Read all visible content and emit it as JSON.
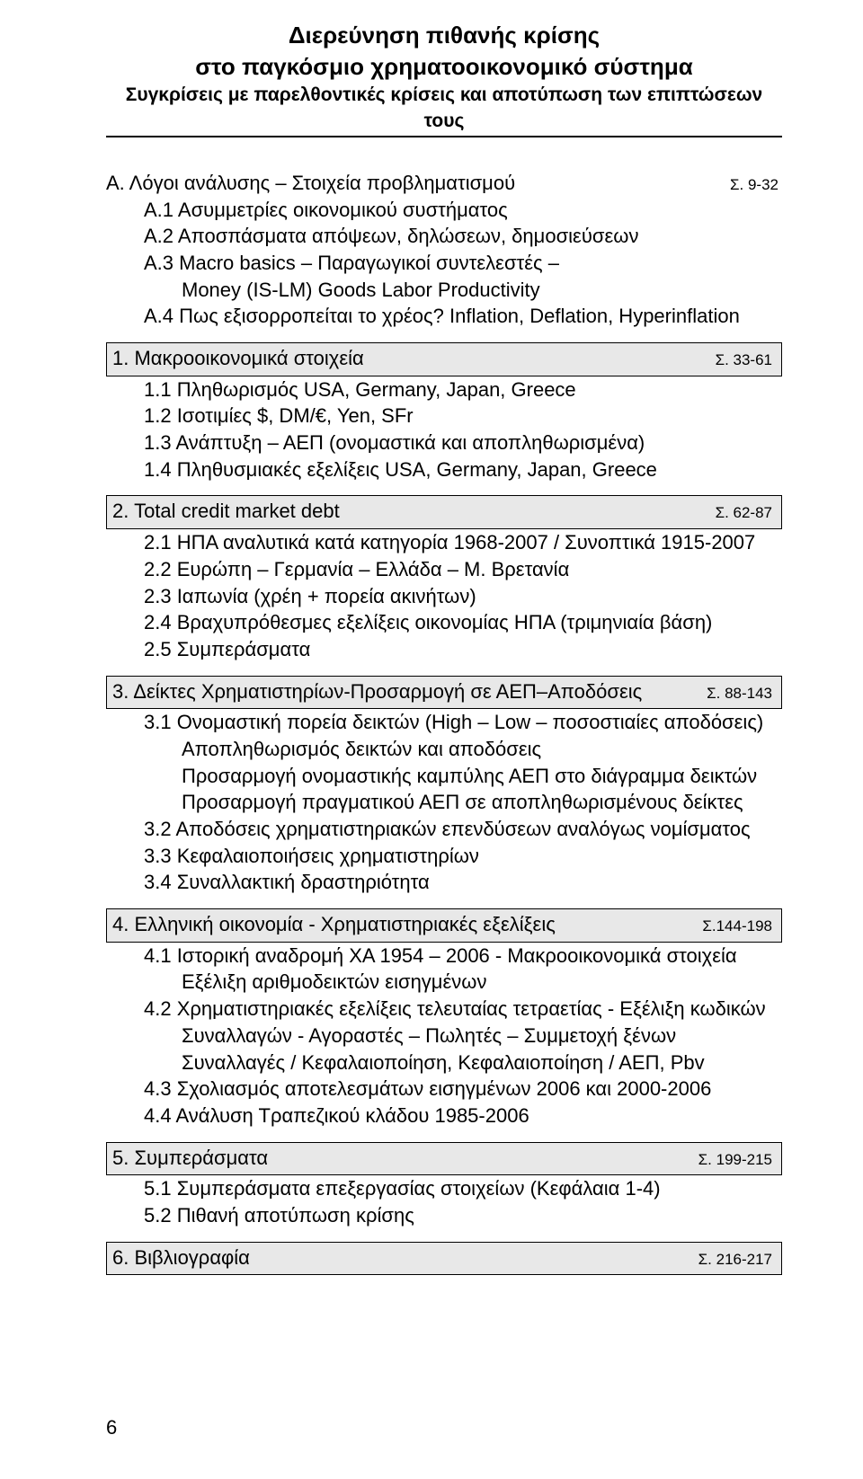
{
  "title": {
    "line1": "Διερεύνηση πιθανής κρίσης",
    "line2": "στο παγκόσμιο χρηματοοικονομικό σύστημα",
    "line3": "Συγκρίσεις με παρελθοντικές κρίσεις και αποτύπωση των επιπτώσεων τους"
  },
  "sectionA": {
    "head": "Α. Λόγοι ανάλυσης – Στοιχεία προβληματισμού",
    "page": "Σ. 9-32",
    "items": [
      "Α.1 Ασυμμετρίες οικονομικού συστήματος",
      "Α.2 Αποσπάσματα απόψεων, δηλώσεων, δημοσιεύσεων",
      "Α.3 Macro basics – Παραγωγικοί συντελεστές –",
      "Money (IS-LM) Goods Labor Productivity",
      "Α.4 Πως εξισορροπείται το χρέος? Inflation, Deflation, Hyperinflation"
    ]
  },
  "sections": [
    {
      "head": "1. Μακροοικονομικά στοιχεία",
      "page": "Σ. 33-61",
      "items": [
        "1.1 Πληθωρισμός USA, Germany, Japan, Greece",
        "1.2 Ισοτιμίες $, DM/€, Yen, SFr",
        "1.3 Ανάπτυξη – ΑΕΠ (ονομαστικά και αποπληθωρισμένα)",
        "1.4 Πληθυσμιακές εξελίξεις USA, Germany, Japan, Greece"
      ]
    },
    {
      "head": "2. Total credit market debt",
      "page": "Σ. 62-87",
      "items": [
        "2.1 ΗΠΑ αναλυτικά κατά κατηγορία 1968-2007 / Συνοπτικά 1915-2007",
        "2.2 Ευρώπη – Γερμανία – Ελλάδα – Μ. Βρετανία",
        "2.3 Ιαπωνία (χρέη + πορεία ακινήτων)",
        "2.4 Βραχυπρόθεσμες εξελίξεις οικονομίας ΗΠΑ (τριμηνιαία βάση)",
        "2.5 Συμπεράσματα"
      ]
    },
    {
      "head": "3. Δείκτες Χρηματιστηρίων-Προσαρμογή σε ΑΕΠ–Αποδόσεις",
      "page": "Σ. 88-143",
      "items": [
        "3.1 Ονομαστική πορεία δεικτών (High – Low – ποσοστιαίες αποδόσεις)",
        "Αποπληθωρισμός δεικτών και αποδόσεις",
        "Προσαρμογή ονομαστικής καμπύλης ΑΕΠ στο διάγραμμα δεικτών",
        "Προσαρμογή πραγματικού ΑΕΠ σε αποπληθωρισμένους δείκτες",
        "3.2 Αποδόσεις χρηματιστηριακών επενδύσεων αναλόγως νομίσματος",
        "3.3 Κεφαλαιοποιήσεις χρηματιστηρίων",
        "3.4 Συναλλακτική δραστηριότητα"
      ]
    },
    {
      "head": "4. Ελληνική οικονομία - Χρηματιστηριακές εξελίξεις",
      "page": "Σ.144-198",
      "items": [
        "4.1 Ιστορική αναδρομή ΧΑ 1954 – 2006 - Μακροοικονομικά στοιχεία",
        "Εξέλιξη αριθμοδεικτών εισηγμένων",
        "4.2 Χρηματιστηριακές εξελίξεις τελευταίας τετραετίας - Εξέλιξη κωδικών",
        "Συναλλαγών - Αγοραστές – Πωλητές – Συμμετοχή ξένων",
        "Συναλλαγές / Κεφαλαιοποίηση, Κεφαλαιοποίηση / ΑΕΠ, Pbv",
        "4.3 Σχολιασμός αποτελεσμάτων εισηγμένων 2006 και 2000-2006",
        "4.4 Ανάλυση Τραπεζικού κλάδου 1985-2006"
      ]
    },
    {
      "head": "5. Συμπεράσματα",
      "page": "Σ. 199-215",
      "items": [
        "5.1 Συμπεράσματα επεξεργασίας στοιχείων (Κεφάλαια 1-4)",
        "5.2 Πιθανή αποτύπωση κρίσης"
      ]
    },
    {
      "head": "6. Βιβλιογραφία",
      "page": "Σ. 216-217",
      "items": []
    }
  ],
  "pageNumber": "6"
}
